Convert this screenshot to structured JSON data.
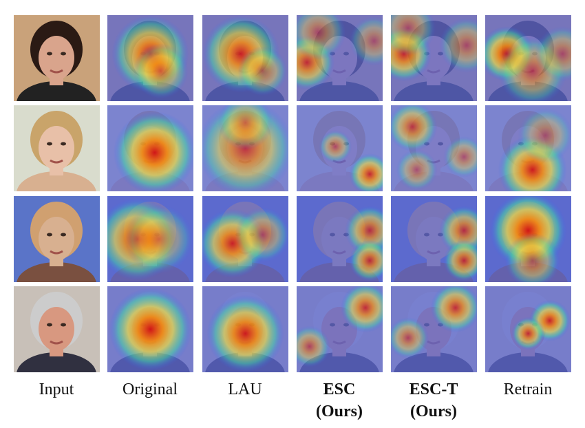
{
  "columns": [
    {
      "id": "input",
      "label_line1": "Input",
      "label_line2": "",
      "bold": false
    },
    {
      "id": "original",
      "label_line1": "Original",
      "label_line2": "",
      "bold": false
    },
    {
      "id": "lau",
      "label_line1": "LAU",
      "label_line2": "",
      "bold": false
    },
    {
      "id": "esc",
      "label_line1": "ESC",
      "label_line2": "(Ours)",
      "bold": true
    },
    {
      "id": "esc-t",
      "label_line1": "ESC-T",
      "label_line2": "(Ours)",
      "bold": true
    },
    {
      "id": "retrain",
      "label_line1": "Retrain",
      "label_line2": "",
      "bold": false
    }
  ],
  "rows": [
    {
      "skin": "#d9a48c",
      "hair": "#2a1a14",
      "bg": "#c9a27a",
      "cloth": "#222222",
      "maps": {
        "original": [
          [
            0.5,
            0.45,
            0.9,
            0.28
          ],
          [
            0.62,
            0.65,
            0.6,
            0.2
          ]
        ],
        "lau": [
          [
            0.45,
            0.45,
            0.9,
            0.28
          ],
          [
            0.7,
            0.65,
            0.55,
            0.18
          ]
        ],
        "esc": [
          [
            0.12,
            0.55,
            0.8,
            0.2
          ],
          [
            0.25,
            0.2,
            0.5,
            0.2
          ],
          [
            0.9,
            0.3,
            0.45,
            0.18
          ]
        ],
        "esc-t": [
          [
            0.15,
            0.45,
            0.85,
            0.2
          ],
          [
            0.2,
            0.15,
            0.5,
            0.2
          ],
          [
            0.88,
            0.35,
            0.5,
            0.2
          ]
        ],
        "retrain": [
          [
            0.25,
            0.45,
            0.95,
            0.2
          ],
          [
            0.55,
            0.65,
            0.6,
            0.25
          ],
          [
            0.9,
            0.45,
            0.5,
            0.2
          ]
        ]
      }
    },
    {
      "skin": "#e8c0a8",
      "hair": "#c9a46a",
      "bg": "#d9dccd",
      "cloth": "#d8b090",
      "maps": {
        "original": [
          [
            0.55,
            0.55,
            1.0,
            0.3
          ]
        ],
        "lau": [
          [
            0.5,
            0.5,
            0.75,
            0.35
          ],
          [
            0.5,
            0.2,
            0.5,
            0.2
          ]
        ],
        "esc": [
          [
            0.85,
            0.8,
            0.85,
            0.15
          ],
          [
            0.45,
            0.48,
            0.55,
            0.12
          ]
        ],
        "esc-t": [
          [
            0.25,
            0.25,
            0.7,
            0.18
          ],
          [
            0.3,
            0.75,
            0.5,
            0.15
          ],
          [
            0.85,
            0.6,
            0.5,
            0.15
          ]
        ],
        "retrain": [
          [
            0.55,
            0.75,
            0.95,
            0.25
          ],
          [
            0.7,
            0.35,
            0.45,
            0.2
          ]
        ]
      }
    },
    {
      "skin": "#d8b090",
      "hair": "#d0a070",
      "bg": "#5a74c8",
      "cloth": "#7a5040",
      "maps": {
        "original": [
          [
            0.35,
            0.5,
            0.9,
            0.3
          ],
          [
            0.6,
            0.5,
            0.5,
            0.25
          ]
        ],
        "lau": [
          [
            0.35,
            0.55,
            0.9,
            0.25
          ],
          [
            0.7,
            0.45,
            0.55,
            0.2
          ]
        ],
        "esc": [
          [
            0.85,
            0.4,
            0.75,
            0.18
          ],
          [
            0.85,
            0.75,
            0.8,
            0.15
          ]
        ],
        "esc-t": [
          [
            0.85,
            0.4,
            0.75,
            0.18
          ],
          [
            0.85,
            0.75,
            0.8,
            0.15
          ]
        ],
        "retrain": [
          [
            0.5,
            0.4,
            1.0,
            0.28
          ],
          [
            0.55,
            0.75,
            0.6,
            0.2
          ]
        ]
      }
    },
    {
      "skin": "#d89880",
      "hair": "#cccccc",
      "bg": "#c8c0b8",
      "cloth": "#303040",
      "maps": {
        "original": [
          [
            0.5,
            0.5,
            1.0,
            0.3
          ]
        ],
        "lau": [
          [
            0.5,
            0.55,
            0.95,
            0.28
          ]
        ],
        "esc": [
          [
            0.8,
            0.25,
            0.8,
            0.18
          ],
          [
            0.15,
            0.7,
            0.6,
            0.15
          ]
        ],
        "esc-t": [
          [
            0.75,
            0.25,
            0.8,
            0.18
          ],
          [
            0.2,
            0.6,
            0.6,
            0.15
          ]
        ],
        "retrain": [
          [
            0.75,
            0.4,
            0.9,
            0.15
          ],
          [
            0.5,
            0.55,
            0.8,
            0.12
          ]
        ]
      }
    }
  ]
}
